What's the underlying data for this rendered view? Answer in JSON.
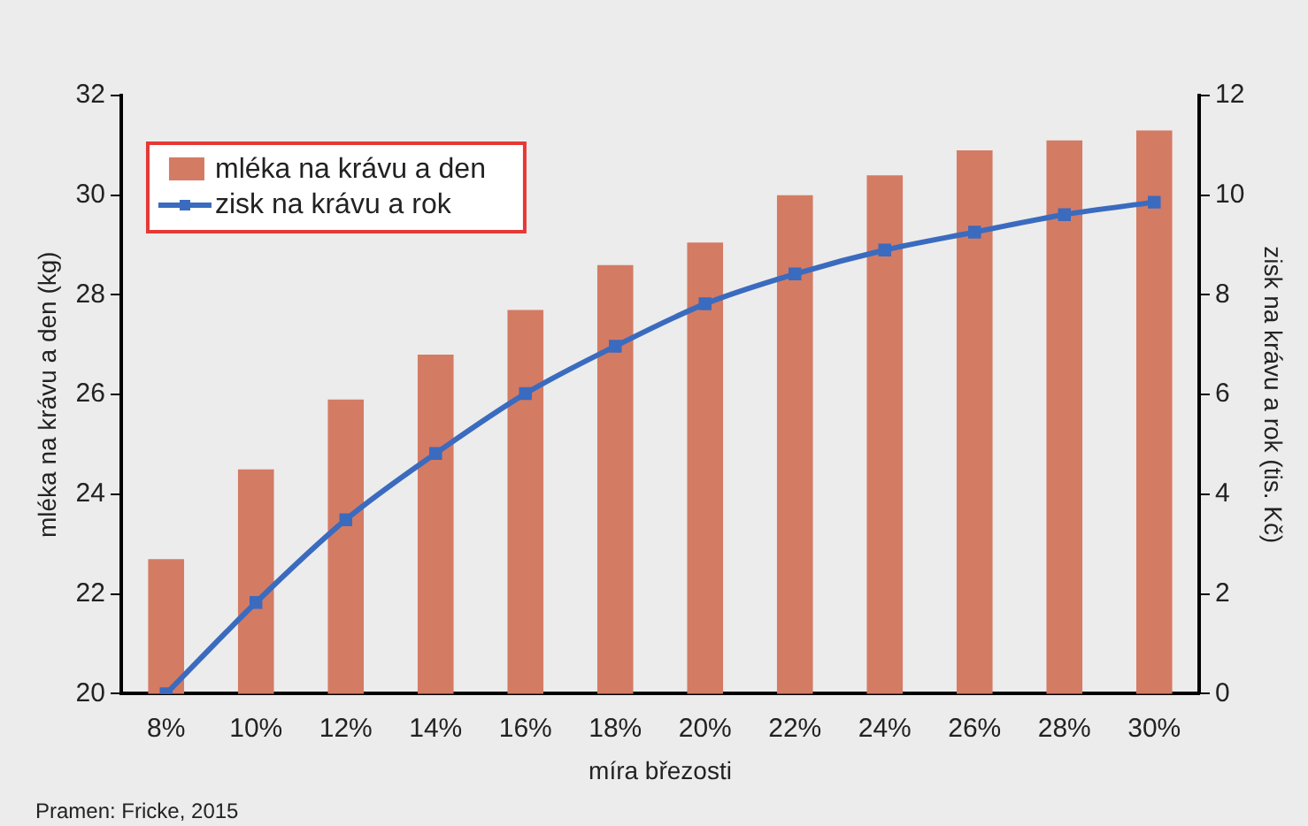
{
  "chart_data": {
    "type": "bar",
    "xlabel": "míra březosti",
    "ylabel": "mléka na krávu a den (kg)",
    "y2label": "zisk na krávu a rok (tis. Kč)",
    "categories": [
      "8%",
      "10%",
      "12%",
      "14%",
      "16%",
      "18%",
      "20%",
      "22%",
      "24%",
      "26%",
      "28%",
      "30%"
    ],
    "series": [
      {
        "name": "mléka na krávu a den",
        "color": "#d47b64",
        "values": [
          22.7,
          24.5,
          25.9,
          26.8,
          27.7,
          28.6,
          29.05,
          30.0,
          30.4,
          30.9,
          31.1,
          31.3
        ]
      },
      {
        "name": "zisk na krávu a rok",
        "type": "line",
        "axis": "y2",
        "color": "#3a6bbf",
        "values": [
          0,
          1.83,
          3.49,
          4.82,
          6.02,
          6.97,
          7.82,
          8.42,
          8.9,
          9.26,
          9.61,
          9.86
        ]
      }
    ],
    "ylim": [
      20,
      32
    ],
    "yticks": [
      20,
      22,
      24,
      26,
      28,
      30,
      32
    ],
    "y2lim": [
      0,
      12
    ],
    "y2ticks": [
      0,
      2,
      4,
      6,
      8,
      10,
      12
    ],
    "legend": "top left",
    "marker": "square",
    "line_style": "solid",
    "grid": false,
    "annotations": [
      "Pramen: Fricke, 2015"
    ]
  }
}
